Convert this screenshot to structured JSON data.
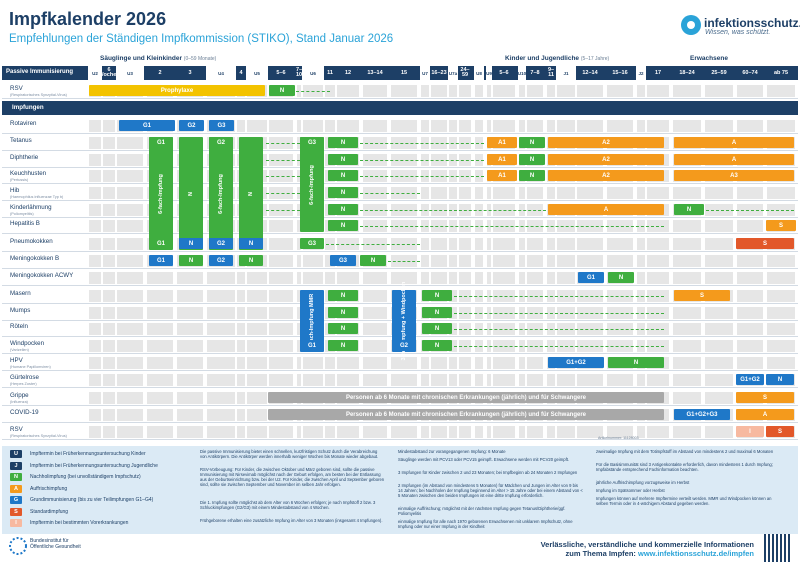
{
  "header": {
    "title": "Impfkalender 2026",
    "subtitle": "Empfehlungen der Ständigen Impfkommission (STIKO), Stand Januar 2026",
    "logo_name": "infektionsschutz.de",
    "logo_tagline": "Wissen, was schützt."
  },
  "groups": {
    "infants": {
      "label": "Säuglinge und Kleinkinder",
      "sub": "(0–59 Monate)"
    },
    "kids": {
      "label": "Kinder und Jugendliche",
      "sub": "(5–17 Jahre)"
    },
    "adults": {
      "label": "Erwachsene"
    }
  },
  "columns": {
    "row_header": "Passive Immunisierung",
    "ages": [
      "U2",
      "6 Wochen",
      "U3",
      "2",
      "3",
      "U4",
      "4",
      "U5",
      "5–6",
      "7–10",
      "U6",
      "11",
      "12",
      "13–14",
      "15",
      "U7",
      "16–23",
      "U7a",
      "24–59",
      "U8",
      "U9",
      "5–6",
      "U10",
      "7–8",
      "9–11",
      "J1",
      "12–14",
      "15–16",
      "J2",
      "17",
      "18–24",
      "25–59",
      "60–74",
      "ab 75"
    ]
  },
  "section_label": "Impfungen",
  "rows": [
    {
      "name": "RSV",
      "sub": "(Respiratorisches Synzytial-Virus)"
    },
    {
      "name": "Rotaviren",
      "sub": ""
    },
    {
      "name": "Tetanus",
      "sub": ""
    },
    {
      "name": "Diphtherie",
      "sub": ""
    },
    {
      "name": "Keuchhusten",
      "sub": "(Pertussis)"
    },
    {
      "name": "Hib",
      "sub": "(Haemophilus influenzae Typ b)"
    },
    {
      "name": "Kinderlähmung",
      "sub": "(Poliomyelitis)"
    },
    {
      "name": "Hepatitis B",
      "sub": ""
    },
    {
      "name": "Pneumokokken",
      "sub": ""
    },
    {
      "name": "Meningokokken B",
      "sub": ""
    },
    {
      "name": "Meningokokken ACWY",
      "sub": ""
    },
    {
      "name": "Masern",
      "sub": ""
    },
    {
      "name": "Mumps",
      "sub": ""
    },
    {
      "name": "Röteln",
      "sub": ""
    },
    {
      "name": "Windpocken",
      "sub": "(Varizellen)"
    },
    {
      "name": "HPV",
      "sub": "(Humane Papillomviren)"
    },
    {
      "name": "Gürtelrose",
      "sub": "(Herpes Zoster)"
    },
    {
      "name": "Grippe",
      "sub": "(Influenza)"
    },
    {
      "name": "COVID-19",
      "sub": ""
    },
    {
      "name": "RSV",
      "sub": "(Respiratorisches Synzytial-Virus)"
    }
  ],
  "cells": {
    "prophylaxe": "Prophylaxe",
    "N": "N",
    "G1": "G1",
    "G2": "G2",
    "G3": "G3",
    "G4": "G4",
    "A1": "A1",
    "A2": "A2",
    "A": "A",
    "A3": "A3",
    "S": "S",
    "six_fold": "6-fach-Impfung",
    "three_fold": "3-fach-Impfung MMR",
    "three_fold2": "3-fach-Impfung + Windpocken",
    "every10": "alle 10 Jahre",
    "yearly": "jährlich",
    "hpv": "G1+G2",
    "zoster": "G1+G2",
    "covid": "G1+G2+G3",
    "chronic_grippe": "Personen ab 6 Monate mit chronischen Erkrankungen (jährlich) und für Schwangere",
    "chronic_covid": "Personen ab 6 Monate mit chronischen Erkrankungen (jährlich) und für Schwangere",
    "I": "I",
    "J": "J"
  },
  "legend": [
    {
      "code": "U",
      "label": "Impftermin bei Früherkennungsuntersuchung Kinder",
      "color": "#1d3f66"
    },
    {
      "code": "J",
      "label": "Impftermin bei Früherkennungsuntersuchung Jugendliche",
      "color": "#1d3f66"
    },
    {
      "code": "N",
      "label": "Nachholimpfung (bei unvollständigem Impfschutz)",
      "color": "#3fae3f"
    },
    {
      "code": "A",
      "label": "Auffrischimpfung",
      "color": "#f49a1c"
    },
    {
      "code": "G",
      "label": "Grundimmunisierung (bis zu vier Teilimpfungen G1–G4)",
      "color": "#1f78c8"
    },
    {
      "code": "S",
      "label": "Standardimpfung",
      "color": "#e2582a"
    },
    {
      "code": "I",
      "label": "Impftermin bei bestimmten Vorerkrankungen",
      "color": "#f7b9a0"
    }
  ],
  "notes": [
    "Die passive Immunisierung bietet einen schnellen, kurzfristigen Schutz durch die Verabreichung von Antikörpern. Die Antikörper werden innerhalb weniger Wochen bis Monate wieder abgebaut.",
    "RSV-Vorbeugung: Für Kinder, die zwischen Oktober und März geboren sind, sollte die passive Immunisierung mit Nirsevimab möglichst nach der Geburt erfolgen, am besten bei der Entlassung aus der Geburtseinrichtung bzw. bei der U2. Für Kinder, die zwischen April und September geboren sind, sollte sie zwischen September und November im selben Jahr erfolgen.",
    "Die 1. Impfung sollte möglichst ab dem Alter von 6 Wochen erfolgen; je nach Impfstoff 2 bzw. 3 Schluckimpfungen (G2/G3) mit einem Mindestabstand von 4 Wochen.",
    "Frühgeborene erhalten eine zusätzliche Impfung im Alter von 3 Monaten (insgesamt 4 Impfungen).",
    "Mindestabstand zur vorangegangenen Impfung: 6 Monate",
    "Säuglinge werden mit PCV13 oder PCV15 geimpft. Erwachsene werden mit PCV20 geimpft.",
    "3 Impfungen für Kinder zwischen 2 und 23 Monaten; bei Impfbeginn ab 24 Monaten 2 Impfungen",
    "2 Impfungen (im Abstand von mindestens 5 Monaten) für Mädchen und Jungen im Alter von 9 bis 14 Jahren; bei Nachholen der Impfung beginnend im Alter > 15 Jahre oder bei einem Abstand von < 5 Monaten zwischen den beiden Impfungen ist eine dritte Impfung erforderlich.",
    "einmalige Auffrischung; möglichst mit der nächsten Impfung gegen Tetanus/Diphtherie/ggf. Poliomyelitis",
    "einmalige Impfung für alle nach 1970 geborenen Erwachsenen mit unklarem Impfschutz, ohne Impfung oder nur einer Impfung in der Kindheit",
    "zweimalige Impfung mit dem Totimpfstoff im Abstand von mindestens 2 und maximal 6 Monaten",
    "Für die Basisimmunität sind 3 Antigenkontakte erforderlich, davon mindestens 1 durch Impfung; Impfabstände entsprechend Fachinformation beachten.",
    "jährliche Auffrischimpfung vorzugsweise im Herbst",
    "Impfung im Spätsommer oder Herbst",
    "Impfungen können auf mehrere Impftermine verteilt werden. MMR und Windpocken können an selben Termin oder in 4-wöchigem Abstand gegeben werden."
  ],
  "article_nr": "Artikelnummer: 11128003",
  "footer": {
    "line1": "Verlässliche, verständliche und kommerzielle Informationen",
    "line2": "zum Thema Impfen:",
    "url": "www.infektionsschutz.de/impfen",
    "institute": "Bundesinstitut für Öffentliche Gesundheit"
  }
}
